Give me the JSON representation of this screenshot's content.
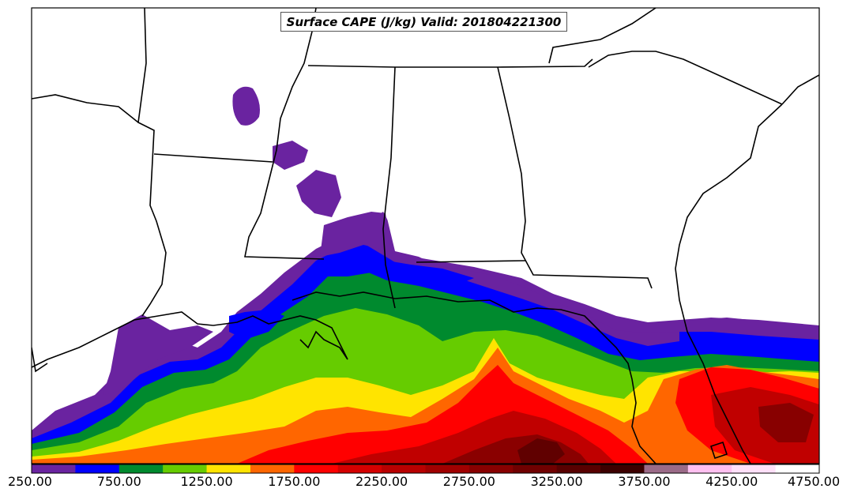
{
  "map": {
    "title": "Surface CAPE (J/kg) Valid: 201804221300",
    "variable": "Surface CAPE",
    "units": "J/kg",
    "valid_time": "201804221300",
    "region": "Southeastern United States / Gulf of Mexico"
  },
  "colorbar": {
    "levels": [
      250,
      500,
      750,
      1000,
      1250,
      1500,
      1750,
      2000,
      2250,
      2500,
      2750,
      3000,
      3250,
      3500,
      3750,
      4000,
      4250,
      4500,
      4750
    ],
    "colors": [
      "#6a23a0",
      "#0000ff",
      "#008a2e",
      "#66cc00",
      "#ffe400",
      "#ff6600",
      "#ff0000",
      "#d40000",
      "#b80000",
      "#a00000",
      "#880000",
      "#700000",
      "#580000",
      "#3c0000",
      "#9b6b88",
      "#ffc0f0",
      "#ffe0f8",
      "#ffffff"
    ],
    "tick_labels": [
      "250.00",
      "750.00",
      "1250.00",
      "1750.00",
      "2250.00",
      "2750.00",
      "3250.00",
      "3750.00",
      "4250.00",
      "4750.00"
    ]
  }
}
